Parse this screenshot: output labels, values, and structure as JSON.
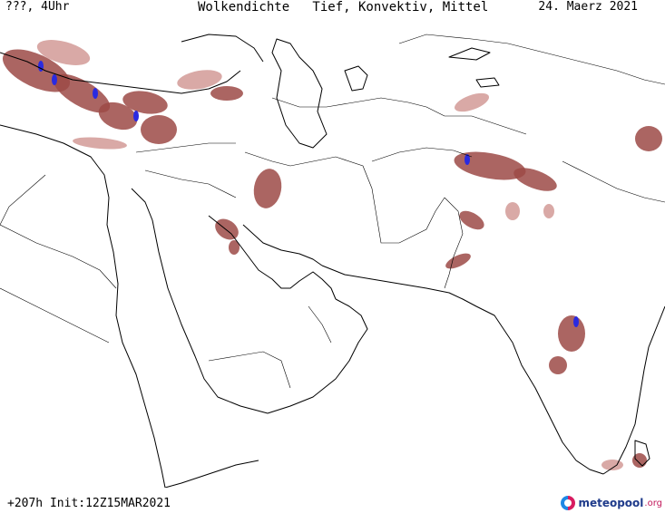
{
  "header": {
    "left": "???, 4Uhr",
    "center": "Wolkendichte   Tief, Konvektiv, Mittel",
    "right": "24. Maerz 2021"
  },
  "footer": {
    "run_info": "+207h Init:12Z15MAR2021"
  },
  "brand": {
    "name": "meteopool",
    "tld": ".org"
  },
  "map": {
    "legend_colors": {
      "cloud": "#9c4a47",
      "cloud_light": "#c98580",
      "dense_core": "#2a2ae0",
      "coastline": "#000000"
    }
  }
}
